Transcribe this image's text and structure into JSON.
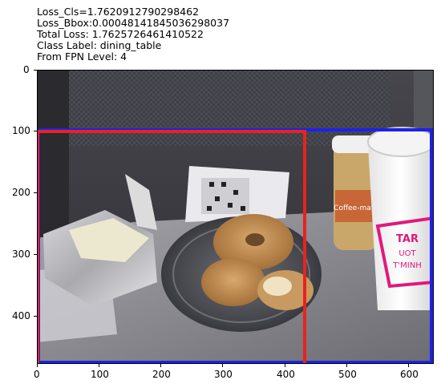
{
  "title_lines": [
    "Loss_Cls=1.7620912790298462",
    "Loss_Bbox:0.00048141845036298037",
    "Total Loss: 1.7625726461410522",
    "Class Label: dining_table",
    "From FPN Level: 4"
  ],
  "axes": {
    "x_ticks": [
      "0",
      "100",
      "200",
      "300",
      "400",
      "500",
      "600"
    ],
    "y_ticks": [
      "0",
      "100",
      "200",
      "300",
      "400"
    ]
  },
  "scene": {
    "carton_text": [
      "TAR",
      "UOT",
      "T'MINH"
    ],
    "jar_label": "Coffee-mate"
  },
  "colors": {
    "red_box": "#e8231f",
    "blue_box": "#1c22e6"
  }
}
